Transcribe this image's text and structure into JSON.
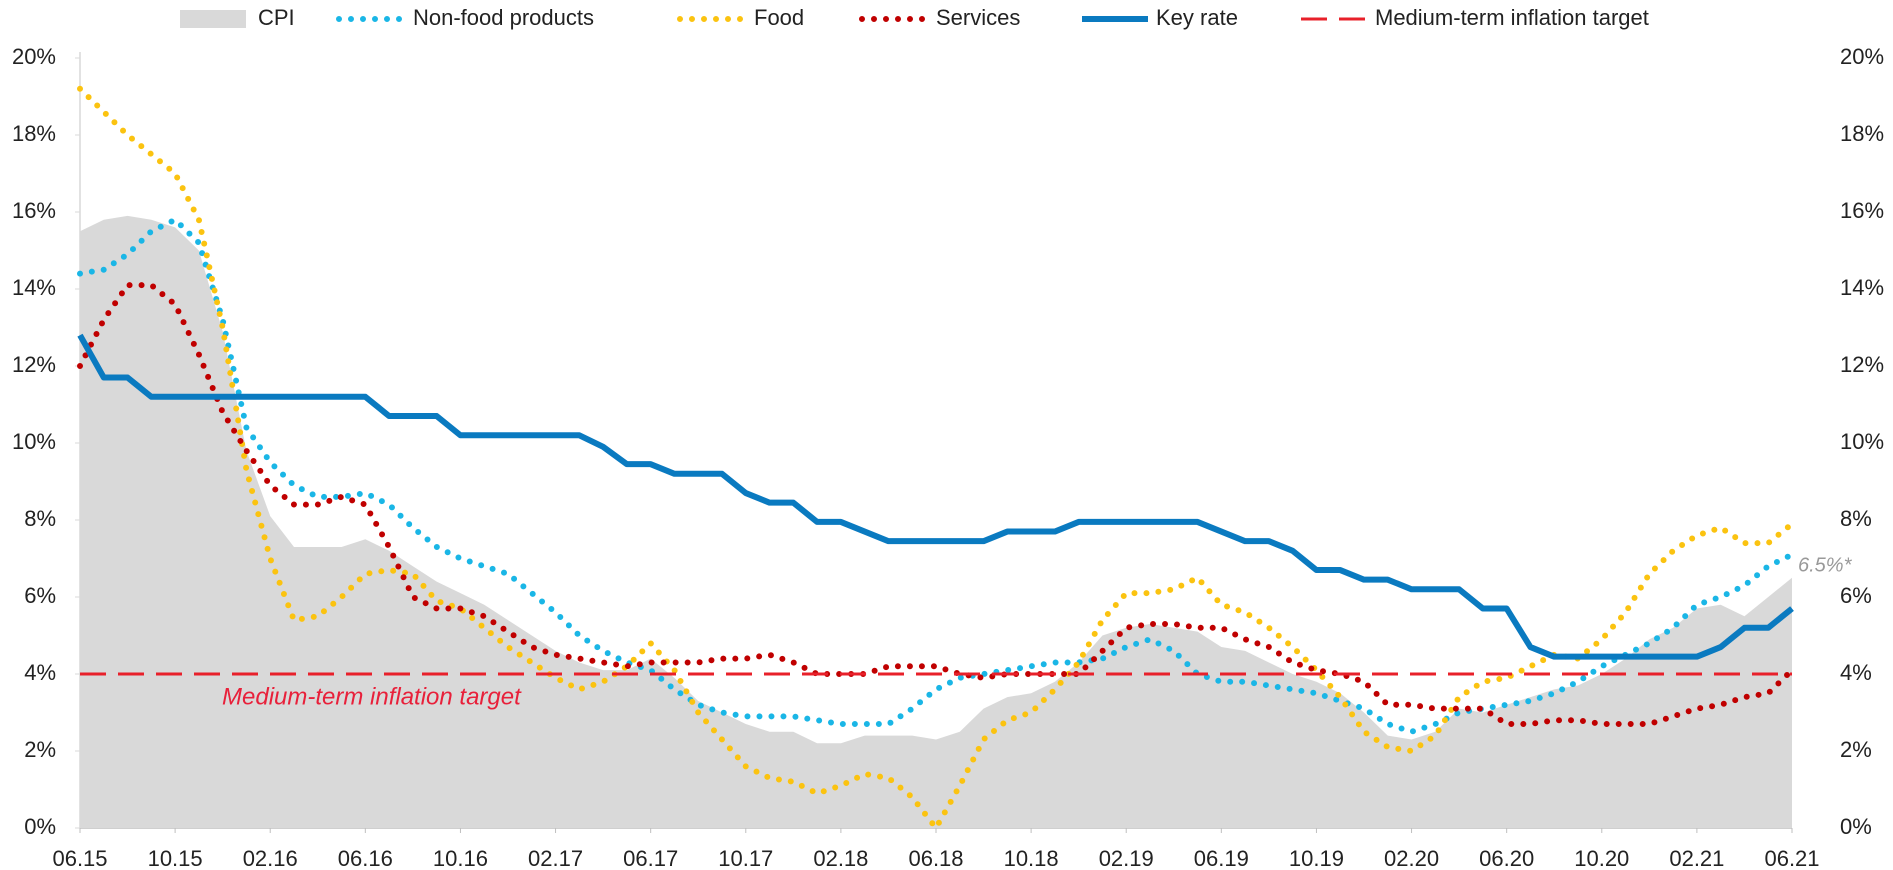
{
  "chart_data": {
    "type": "line",
    "categories": [
      "06.15",
      null,
      null,
      null,
      "10.15",
      null,
      null,
      null,
      "02.16",
      null,
      null,
      null,
      "06.16",
      null,
      null,
      null,
      "10.16",
      null,
      null,
      null,
      "02.17",
      null,
      null,
      null,
      "06.17",
      null,
      null,
      null,
      "10.17",
      null,
      null,
      null,
      "02.18",
      null,
      null,
      null,
      "06.18",
      null,
      null,
      null,
      "10.18",
      null,
      null,
      null,
      "02.19",
      null,
      null,
      null,
      "06.19",
      null,
      null,
      null,
      "10.19",
      null,
      null,
      null,
      "02.20",
      null,
      null,
      null,
      "06.20",
      null,
      null,
      null,
      "10.20",
      null,
      null,
      null,
      "02.21",
      null,
      null,
      null,
      "06.21"
    ],
    "series": [
      {
        "name": "CPI",
        "color": "#d9d9d9",
        "style": "area",
        "values": [
          15.5,
          15.8,
          15.9,
          15.8,
          15.6,
          15.0,
          12.9,
          9.8,
          8.1,
          7.3,
          7.3,
          7.3,
          7.5,
          7.2,
          6.8,
          6.4,
          6.1,
          5.8,
          5.4,
          5.0,
          4.6,
          4.3,
          4.1,
          4.1,
          4.4,
          3.9,
          3.3,
          3.0,
          2.7,
          2.5,
          2.5,
          2.2,
          2.2,
          2.4,
          2.4,
          2.4,
          2.3,
          2.5,
          3.1,
          3.4,
          3.5,
          3.8,
          4.3,
          5.0,
          5.2,
          5.3,
          5.2,
          5.1,
          4.7,
          4.6,
          4.3,
          4.0,
          3.8,
          3.5,
          3.0,
          2.4,
          2.3,
          2.5,
          3.1,
          3.0,
          3.2,
          3.4,
          3.6,
          3.7,
          4.0,
          4.4,
          4.9,
          5.2,
          5.7,
          5.8,
          5.5,
          6.0,
          6.5
        ]
      },
      {
        "name": "Non-food products",
        "color": "#1ab6e6",
        "style": "dotted",
        "values": [
          14.4,
          14.5,
          14.9,
          15.5,
          15.8,
          15.2,
          13.2,
          10.4,
          9.5,
          8.9,
          8.6,
          8.6,
          8.7,
          8.4,
          7.8,
          7.3,
          7.0,
          6.8,
          6.6,
          6.1,
          5.6,
          5.0,
          4.6,
          4.3,
          4.1,
          3.6,
          3.2,
          3.0,
          2.9,
          2.9,
          2.9,
          2.8,
          2.7,
          2.7,
          2.7,
          3.1,
          3.6,
          3.9,
          4.0,
          4.1,
          4.2,
          4.3,
          4.3,
          4.4,
          4.7,
          4.9,
          4.6,
          4.0,
          3.8,
          3.8,
          3.7,
          3.6,
          3.5,
          3.3,
          3.1,
          2.7,
          2.5,
          2.7,
          3.0,
          3.1,
          3.2,
          3.3,
          3.5,
          3.8,
          4.2,
          4.5,
          4.8,
          5.2,
          5.8,
          6.0,
          6.3,
          6.8,
          7.1
        ]
      },
      {
        "name": "Food",
        "color": "#fbc310",
        "style": "dotted",
        "values": [
          19.2,
          18.6,
          18.0,
          17.5,
          17.0,
          15.8,
          13.0,
          9.3,
          7.0,
          5.4,
          5.5,
          6.0,
          6.6,
          6.7,
          6.6,
          5.9,
          5.7,
          5.2,
          4.7,
          4.3,
          3.9,
          3.6,
          3.8,
          4.2,
          4.8,
          4.1,
          3.0,
          2.3,
          1.6,
          1.3,
          1.2,
          0.9,
          1.1,
          1.4,
          1.3,
          0.8,
          0.0,
          1.1,
          2.3,
          2.8,
          3.0,
          3.6,
          4.3,
          5.4,
          6.1,
          6.1,
          6.2,
          6.5,
          5.8,
          5.6,
          5.2,
          4.7,
          4.1,
          3.4,
          2.5,
          2.1,
          2.0,
          2.4,
          3.4,
          3.8,
          3.9,
          4.2,
          4.5,
          4.4,
          4.9,
          5.6,
          6.6,
          7.2,
          7.6,
          7.8,
          7.4,
          7.4,
          7.9
        ]
      },
      {
        "name": "Services",
        "color": "#c00000",
        "style": "dotted",
        "values": [
          12.0,
          13.2,
          14.1,
          14.1,
          13.6,
          12.3,
          10.8,
          9.8,
          8.9,
          8.4,
          8.4,
          8.6,
          8.4,
          7.3,
          6.0,
          5.7,
          5.7,
          5.5,
          5.1,
          4.7,
          4.5,
          4.4,
          4.3,
          4.2,
          4.3,
          4.3,
          4.3,
          4.4,
          4.4,
          4.5,
          4.3,
          4.0,
          4.0,
          4.0,
          4.2,
          4.2,
          4.2,
          4.0,
          3.9,
          4.0,
          4.0,
          4.0,
          4.0,
          4.6,
          5.2,
          5.3,
          5.3,
          5.2,
          5.2,
          4.9,
          4.7,
          4.3,
          4.1,
          4.0,
          3.8,
          3.2,
          3.2,
          3.1,
          3.1,
          3.1,
          2.7,
          2.7,
          2.8,
          2.8,
          2.7,
          2.7,
          2.7,
          2.9,
          3.1,
          3.2,
          3.4,
          3.5,
          4.1
        ]
      },
      {
        "name": "Key rate",
        "color": "#0a7ac0",
        "style": "solid",
        "values": [
          12.8,
          11.7,
          11.7,
          11.2,
          11.2,
          11.2,
          11.2,
          11.2,
          11.2,
          11.2,
          11.2,
          11.2,
          11.2,
          10.7,
          10.7,
          10.7,
          10.2,
          10.2,
          10.2,
          10.2,
          10.2,
          10.2,
          9.9,
          9.45,
          9.45,
          9.2,
          9.2,
          9.2,
          8.7,
          8.45,
          8.45,
          7.95,
          7.95,
          7.7,
          7.45,
          7.45,
          7.45,
          7.45,
          7.45,
          7.7,
          7.7,
          7.7,
          7.95,
          7.95,
          7.95,
          7.95,
          7.95,
          7.95,
          7.7,
          7.45,
          7.45,
          7.2,
          6.7,
          6.7,
          6.45,
          6.45,
          6.2,
          6.2,
          6.2,
          5.7,
          5.7,
          4.7,
          4.45,
          4.45,
          4.45,
          4.45,
          4.45,
          4.45,
          4.45,
          4.7,
          5.2,
          5.2,
          5.7
        ]
      },
      {
        "name": "Medium-term inflation target",
        "color": "#e8202a",
        "style": "dashed",
        "value": 4
      }
    ],
    "annotations": [
      {
        "text": "Medium-term inflation target"
      },
      {
        "text": "6.5%*"
      }
    ],
    "ylim": [
      0,
      20
    ],
    "yticks": [
      {
        "value": 0,
        "label": "0%"
      },
      {
        "value": 2,
        "label": "2%"
      },
      {
        "value": 4,
        "label": "4%"
      },
      {
        "value": 6,
        "label": "6%"
      },
      {
        "value": 8,
        "label": "8%"
      },
      {
        "value": 10,
        "label": "10%"
      },
      {
        "value": 12,
        "label": "12%"
      },
      {
        "value": 14,
        "label": "14%"
      },
      {
        "value": 16,
        "label": "16%"
      },
      {
        "value": 18,
        "label": "18%"
      },
      {
        "value": 20,
        "label": "20%"
      }
    ],
    "y2lim": [
      0,
      20
    ],
    "y2ticks": [
      {
        "value": 0,
        "label": "0%"
      },
      {
        "value": 2,
        "label": "2%"
      },
      {
        "value": 4,
        "label": "4%"
      },
      {
        "value": 6,
        "label": "6%"
      },
      {
        "value": 8,
        "label": "8%"
      },
      {
        "value": 10,
        "label": "10%"
      },
      {
        "value": 12,
        "label": "12%"
      },
      {
        "value": 14,
        "label": "14%"
      },
      {
        "value": 16,
        "label": "16%"
      },
      {
        "value": 18,
        "label": "18%"
      },
      {
        "value": 20,
        "label": "20%"
      }
    ],
    "grid": false,
    "legend": "top"
  }
}
